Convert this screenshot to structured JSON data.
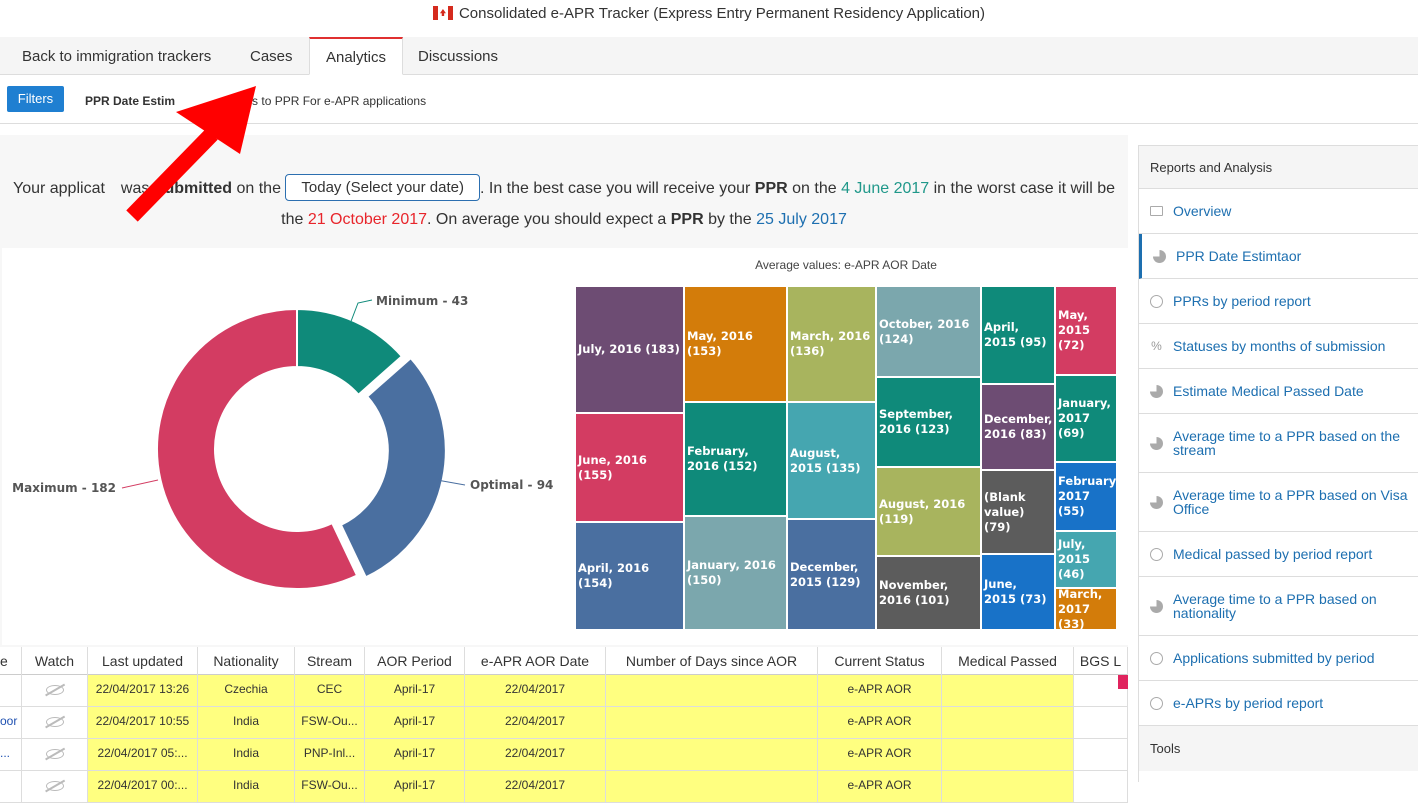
{
  "window": {
    "title": "Consolidated e-APR Tracker (Express Entry Permanent Residency Application)"
  },
  "tabs": [
    {
      "label": "Back to immigration trackers"
    },
    {
      "label": "Cases"
    },
    {
      "label": "Analytics"
    },
    {
      "label": "Discussions"
    }
  ],
  "subbar": {
    "filters_label": "Filters",
    "title_bold": "PPR Date Estim",
    "title_rest": "s to PPR For e-APR applications"
  },
  "sentence": {
    "p1": "Your applicat",
    "p2": "was ",
    "submitted": "Submitted",
    "p3": " on the ",
    "date_select": "Today (Select your date)",
    "p4": ". In the best case you will receive your ",
    "ppr1": "PPR",
    "p5": " on the ",
    "best": "4 June 2017",
    "p6": " in the worst case it will be the ",
    "worst": "21 October 2017",
    "p7": ". On average you should expect a ",
    "ppr2": "PPR",
    "p8": " by the ",
    "avg": "25 July 2017"
  },
  "chart_data": [
    {
      "type": "pie",
      "categories": [
        "Minimum",
        "Optimal",
        "Maximum"
      ],
      "values": [
        43,
        94,
        182
      ],
      "labels": [
        "Minimum - 43",
        "Optimal - 94",
        "Maximum - 182"
      ],
      "colors": [
        "#0f8a7a",
        "#4a6fa0",
        "#d33c62"
      ],
      "donut": true
    },
    {
      "type": "heatmap",
      "title": "Average values: e-APR AOR Date",
      "cells": [
        {
          "label": "July, 2016 (183)",
          "value": 183,
          "color": "#6d4c73"
        },
        {
          "label": "June, 2016 (155)",
          "value": 155,
          "color": "#d33c62"
        },
        {
          "label": "April, 2016 (154)",
          "value": 154,
          "color": "#4a6fa0"
        },
        {
          "label": "May, 2016 (153)",
          "value": 153,
          "color": "#d37c0a"
        },
        {
          "label": "February, 2016 (152)",
          "value": 152,
          "color": "#0f8a7a"
        },
        {
          "label": "January, 2016 (150)",
          "value": 150,
          "color": "#7ba7ad"
        },
        {
          "label": "March, 2016 (136)",
          "value": 136,
          "color": "#a8b45e"
        },
        {
          "label": "August, 2015 (135)",
          "value": 135,
          "color": "#45a6b0"
        },
        {
          "label": "December, 2015 (129)",
          "value": 129,
          "color": "#4a6fa0"
        },
        {
          "label": "October, 2016 (124)",
          "value": 124,
          "color": "#7ba7ad"
        },
        {
          "label": "September, 2016 (123)",
          "value": 123,
          "color": "#0f8a7a"
        },
        {
          "label": "August, 2016 (119)",
          "value": 119,
          "color": "#a8b45e"
        },
        {
          "label": "November, 2016 (101)",
          "value": 101,
          "color": "#5c5c5c"
        },
        {
          "label": "April, 2015 (95)",
          "value": 95,
          "color": "#0f8a7a"
        },
        {
          "label": "December, 2016 (83)",
          "value": 83,
          "color": "#6d4c73"
        },
        {
          "label": "(Blank value) (79)",
          "value": 79,
          "color": "#5c5c5c"
        },
        {
          "label": "June, 2015 (73)",
          "value": 73,
          "color": "#1872c8"
        },
        {
          "label": "May, 2015 (72)",
          "value": 72,
          "color": "#d33c62"
        },
        {
          "label": "January, 2017 (69)",
          "value": 69,
          "color": "#0f8a7a"
        },
        {
          "label": "February, 2017 (55)",
          "value": 55,
          "color": "#1872c8"
        },
        {
          "label": "July, 2015 (46)",
          "value": 46,
          "color": "#45a6b0"
        },
        {
          "label": "March, 2017 (33)",
          "value": 33,
          "color": "#d37c0a"
        }
      ]
    }
  ],
  "table": {
    "headers": [
      "e",
      "Watch",
      "Last updated",
      "Nationality",
      "Stream",
      "AOR Period",
      "e-APR AOR Date",
      "Number of Days since AOR",
      "Current Status",
      "Medical Passed",
      "BGS L"
    ],
    "rows": [
      {
        "e": "",
        "updated": "22/04/2017 13:26",
        "nationality": "Czechia",
        "stream": "CEC",
        "aor": "April-17",
        "eapr": "22/04/2017",
        "days": "",
        "status": "e-APR AOR",
        "medical": ""
      },
      {
        "e": "oor",
        "updated": "22/04/2017 10:55",
        "nationality": "India",
        "stream": "FSW-Ou...",
        "aor": "April-17",
        "eapr": "22/04/2017",
        "days": "",
        "status": "e-APR AOR",
        "medical": ""
      },
      {
        "e": "...",
        "updated": "22/04/2017 05:...",
        "nationality": "India",
        "stream": "PNP-Inl...",
        "aor": "April-17",
        "eapr": "22/04/2017",
        "days": "",
        "status": "e-APR AOR",
        "medical": ""
      },
      {
        "e": "",
        "updated": "22/04/2017 00:...",
        "nationality": "India",
        "stream": "FSW-Ou...",
        "aor": "April-17",
        "eapr": "22/04/2017",
        "days": "",
        "status": "e-APR AOR",
        "medical": ""
      }
    ]
  },
  "sidebar": {
    "header": "Reports and Analysis",
    "items": [
      {
        "label": "Overview",
        "icon": "screen-icon"
      },
      {
        "label": "PPR Date Estimtaor",
        "icon": "pie-icon",
        "active": true
      },
      {
        "label": "PPRs by period report",
        "icon": "clock-icon"
      },
      {
        "label": "Statuses by months of submission",
        "icon": "percent-icon"
      },
      {
        "label": "Estimate Medical Passed Date",
        "icon": "pie-icon"
      },
      {
        "label": "Average time to a PPR based on the stream",
        "icon": "pie-icon"
      },
      {
        "label": "Average time to a PPR based on Visa Office",
        "icon": "pie-icon"
      },
      {
        "label": "Medical passed by period report",
        "icon": "clock-icon"
      },
      {
        "label": "Average time to a PPR based on nationality",
        "icon": "pie-icon"
      },
      {
        "label": "Applications submitted by period",
        "icon": "clock-icon"
      },
      {
        "label": "e-APRs by period report",
        "icon": "clock-icon"
      }
    ],
    "tools_header": "Tools"
  },
  "colors": {
    "accent": "#1f7fd1",
    "highlight_row": "#ffff80",
    "arrow": "#ff0000"
  }
}
